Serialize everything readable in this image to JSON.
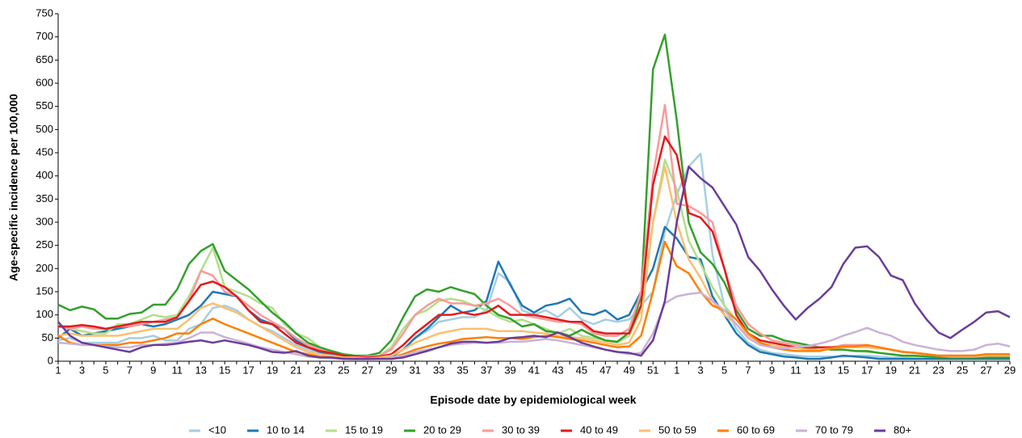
{
  "chart_data": {
    "type": "line",
    "ylabel": "Age-specific incidence per 100,000",
    "xlabel": "Episode date by epidemiological week",
    "categories": [
      "1",
      null,
      "3",
      null,
      "5",
      null,
      "7",
      null,
      "9",
      null,
      "11",
      null,
      "13",
      null,
      "15",
      null,
      "17",
      null,
      "19",
      null,
      "21",
      null,
      "23",
      null,
      "25",
      null,
      "27",
      null,
      "29",
      null,
      "31",
      null,
      "33",
      null,
      "35",
      null,
      "37",
      null,
      "39",
      null,
      "41",
      null,
      "43",
      null,
      "45",
      null,
      "47",
      null,
      "49",
      null,
      "51",
      null,
      "1",
      null,
      "3",
      null,
      "5",
      null,
      "7",
      null,
      "9",
      null,
      "11",
      null,
      "13",
      null,
      "15",
      null,
      "17",
      null,
      "19",
      null,
      "21",
      null,
      "23",
      null,
      "25",
      null,
      "27",
      null,
      "29"
    ],
    "ylim": [
      0,
      750
    ],
    "yticks": [
      0,
      50,
      100,
      150,
      200,
      250,
      300,
      350,
      400,
      450,
      500,
      550,
      600,
      650,
      700,
      750
    ],
    "legend": "bottom",
    "series": [
      {
        "name": "<10",
        "color": "#a6cee3",
        "values": [
          45,
          50,
          40,
          40,
          40,
          40,
          50,
          50,
          55,
          45,
          45,
          70,
          80,
          115,
          120,
          110,
          90,
          75,
          65,
          50,
          35,
          25,
          18,
          12,
          10,
          8,
          8,
          8,
          12,
          25,
          50,
          65,
          85,
          90,
          95,
          95,
          110,
          190,
          170,
          110,
          100,
          110,
          95,
          115,
          90,
          80,
          90,
          85,
          90,
          120,
          150,
          280,
          360,
          420,
          448,
          230,
          120,
          70,
          40,
          25,
          18,
          15,
          12,
          10,
          10,
          10,
          10,
          12,
          12,
          10,
          8,
          8,
          5,
          5,
          5,
          5,
          5,
          5,
          5,
          5,
          5
        ]
      },
      {
        "name": "10 to 14",
        "color": "#1f78b4",
        "values": [
          50,
          70,
          55,
          60,
          65,
          70,
          75,
          80,
          75,
          80,
          90,
          100,
          120,
          150,
          145,
          140,
          110,
          90,
          80,
          70,
          45,
          30,
          20,
          15,
          10,
          8,
          8,
          8,
          10,
          25,
          50,
          70,
          95,
          120,
          105,
          110,
          130,
          215,
          165,
          120,
          105,
          120,
          125,
          135,
          105,
          100,
          110,
          90,
          100,
          150,
          200,
          290,
          265,
          225,
          220,
          140,
          100,
          60,
          35,
          20,
          15,
          10,
          8,
          5,
          5,
          8,
          12,
          10,
          8,
          5,
          5,
          5,
          5,
          5,
          5,
          5,
          5,
          5,
          5,
          5,
          5
        ]
      },
      {
        "name": "15 to 19",
        "color": "#b2df8a",
        "values": [
          80,
          70,
          65,
          60,
          60,
          80,
          80,
          90,
          100,
          95,
          100,
          140,
          195,
          245,
          160,
          150,
          140,
          125,
          115,
          80,
          60,
          50,
          30,
          20,
          12,
          10,
          10,
          12,
          30,
          70,
          100,
          110,
          130,
          135,
          130,
          120,
          110,
          95,
          85,
          90,
          80,
          70,
          60,
          70,
          55,
          50,
          45,
          40,
          55,
          110,
          300,
          435,
          370,
          260,
          210,
          160,
          120,
          90,
          60,
          45,
          40,
          35,
          30,
          28,
          25,
          25,
          25,
          22,
          20,
          18,
          15,
          12,
          10,
          10,
          10,
          10,
          10,
          10,
          10,
          10,
          10
        ]
      },
      {
        "name": "20 to 29",
        "color": "#33a02c",
        "values": [
          122,
          110,
          118,
          112,
          92,
          92,
          102,
          105,
          122,
          122,
          155,
          210,
          238,
          253,
          195,
          175,
          155,
          130,
          105,
          85,
          60,
          40,
          30,
          22,
          15,
          12,
          12,
          18,
          45,
          95,
          140,
          155,
          150,
          160,
          152,
          145,
          120,
          100,
          92,
          75,
          80,
          65,
          62,
          55,
          68,
          55,
          45,
          42,
          62,
          140,
          630,
          705,
          520,
          300,
          235,
          210,
          170,
          110,
          70,
          55,
          55,
          45,
          40,
          35,
          30,
          25,
          25,
          22,
          22,
          18,
          15,
          12,
          12,
          10,
          8,
          8,
          8,
          8,
          8,
          8,
          8
        ]
      },
      {
        "name": "30 to 39",
        "color": "#fb9a99",
        "values": [
          75,
          70,
          75,
          70,
          70,
          75,
          75,
          80,
          85,
          90,
          95,
          130,
          195,
          185,
          150,
          140,
          120,
          100,
          85,
          70,
          50,
          35,
          25,
          18,
          12,
          10,
          10,
          12,
          25,
          60,
          100,
          120,
          135,
          125,
          125,
          120,
          125,
          135,
          120,
          100,
          95,
          90,
          85,
          85,
          80,
          60,
          55,
          55,
          70,
          150,
          400,
          553,
          340,
          335,
          320,
          300,
          200,
          120,
          80,
          60,
          45,
          40,
          35,
          30,
          30,
          30,
          35,
          35,
          35,
          30,
          25,
          20,
          18,
          15,
          12,
          12,
          12,
          12,
          15,
          15,
          15
        ]
      },
      {
        "name": "40 to 49",
        "color": "#e31a1c",
        "values": [
          75,
          75,
          78,
          75,
          70,
          75,
          80,
          85,
          85,
          85,
          95,
          130,
          165,
          172,
          160,
          140,
          110,
          85,
          80,
          60,
          40,
          30,
          22,
          18,
          12,
          10,
          8,
          10,
          15,
          35,
          60,
          80,
          100,
          100,
          105,
          100,
          105,
          120,
          100,
          100,
          100,
          95,
          90,
          85,
          85,
          65,
          60,
          60,
          60,
          120,
          380,
          485,
          445,
          320,
          310,
          280,
          200,
          100,
          60,
          45,
          40,
          35,
          30,
          28,
          30,
          30,
          30,
          32,
          32,
          30,
          25,
          20,
          18,
          15,
          12,
          12,
          12,
          12,
          12,
          12,
          12
        ]
      },
      {
        "name": "50 to 59",
        "color": "#fdbf6f",
        "values": [
          55,
          60,
          55,
          55,
          55,
          55,
          60,
          65,
          70,
          70,
          70,
          90,
          115,
          125,
          115,
          105,
          90,
          75,
          60,
          45,
          30,
          20,
          15,
          12,
          8,
          8,
          6,
          8,
          12,
          25,
          40,
          50,
          60,
          65,
          70,
          70,
          70,
          65,
          65,
          65,
          62,
          60,
          55,
          52,
          50,
          45,
          40,
          35,
          40,
          90,
          300,
          420,
          300,
          220,
          180,
          130,
          100,
          80,
          55,
          40,
          35,
          30,
          28,
          25,
          25,
          28,
          30,
          30,
          30,
          28,
          25,
          20,
          18,
          15,
          12,
          10,
          10,
          10,
          12,
          12,
          12
        ]
      },
      {
        "name": "60 to 69",
        "color": "#ff7f00",
        "values": [
          55,
          40,
          35,
          35,
          35,
          35,
          40,
          40,
          45,
          50,
          60,
          60,
          80,
          92,
          80,
          70,
          60,
          50,
          40,
          30,
          20,
          15,
          10,
          8,
          6,
          5,
          5,
          6,
          8,
          15,
          25,
          32,
          38,
          42,
          48,
          50,
          52,
          50,
          50,
          48,
          52,
          55,
          52,
          48,
          45,
          40,
          35,
          30,
          32,
          55,
          150,
          258,
          205,
          190,
          150,
          120,
          110,
          90,
          60,
          40,
          30,
          25,
          22,
          22,
          22,
          28,
          32,
          32,
          35,
          30,
          25,
          20,
          18,
          15,
          12,
          12,
          12,
          12,
          15,
          15,
          15
        ]
      },
      {
        "name": "70 to 79",
        "color": "#cab2d6",
        "values": [
          40,
          38,
          35,
          35,
          32,
          30,
          30,
          35,
          35,
          38,
          40,
          50,
          62,
          62,
          52,
          45,
          38,
          30,
          25,
          20,
          15,
          10,
          8,
          6,
          5,
          4,
          4,
          5,
          8,
          12,
          20,
          25,
          30,
          35,
          38,
          40,
          40,
          40,
          42,
          42,
          45,
          48,
          45,
          40,
          35,
          30,
          25,
          20,
          15,
          18,
          60,
          125,
          140,
          145,
          148,
          130,
          110,
          80,
          50,
          35,
          30,
          28,
          30,
          33,
          38,
          45,
          55,
          63,
          72,
          62,
          55,
          42,
          35,
          30,
          25,
          22,
          22,
          25,
          35,
          38,
          32
        ]
      },
      {
        "name": "80+",
        "color": "#6a3d9a",
        "values": [
          85,
          55,
          40,
          35,
          30,
          25,
          20,
          30,
          35,
          35,
          38,
          42,
          45,
          40,
          45,
          40,
          35,
          28,
          20,
          18,
          22,
          12,
          8,
          8,
          5,
          5,
          5,
          5,
          5,
          8,
          15,
          22,
          30,
          38,
          42,
          42,
          40,
          42,
          50,
          52,
          55,
          52,
          62,
          52,
          40,
          32,
          25,
          20,
          18,
          12,
          45,
          130,
          300,
          420,
          395,
          375,
          335,
          295,
          225,
          195,
          155,
          120,
          90,
          115,
          135,
          160,
          210,
          245,
          248,
          225,
          185,
          175,
          125,
          90,
          62,
          50,
          68,
          85,
          105,
          108,
          95
        ]
      }
    ]
  }
}
